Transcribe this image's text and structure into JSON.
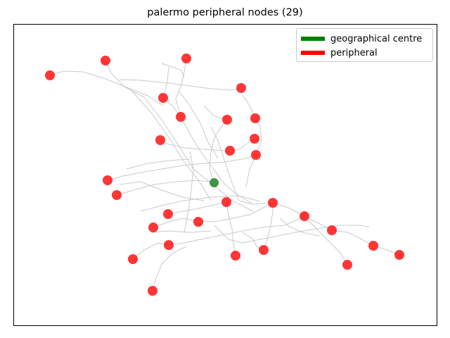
{
  "title": "palermo peripheral nodes (29)",
  "legend": [
    {
      "label": "geographical centre",
      "color": "#008000"
    },
    {
      "label": "peripheral",
      "color": "#ff0000"
    }
  ],
  "colors": {
    "centre": "#2e8b2e",
    "peripheral": "#ff1a1a",
    "streets": "#b8b8b8",
    "frame": "#000000"
  },
  "centre_node": {
    "name": "geographical centre"
  },
  "peripheral_count": 29
}
